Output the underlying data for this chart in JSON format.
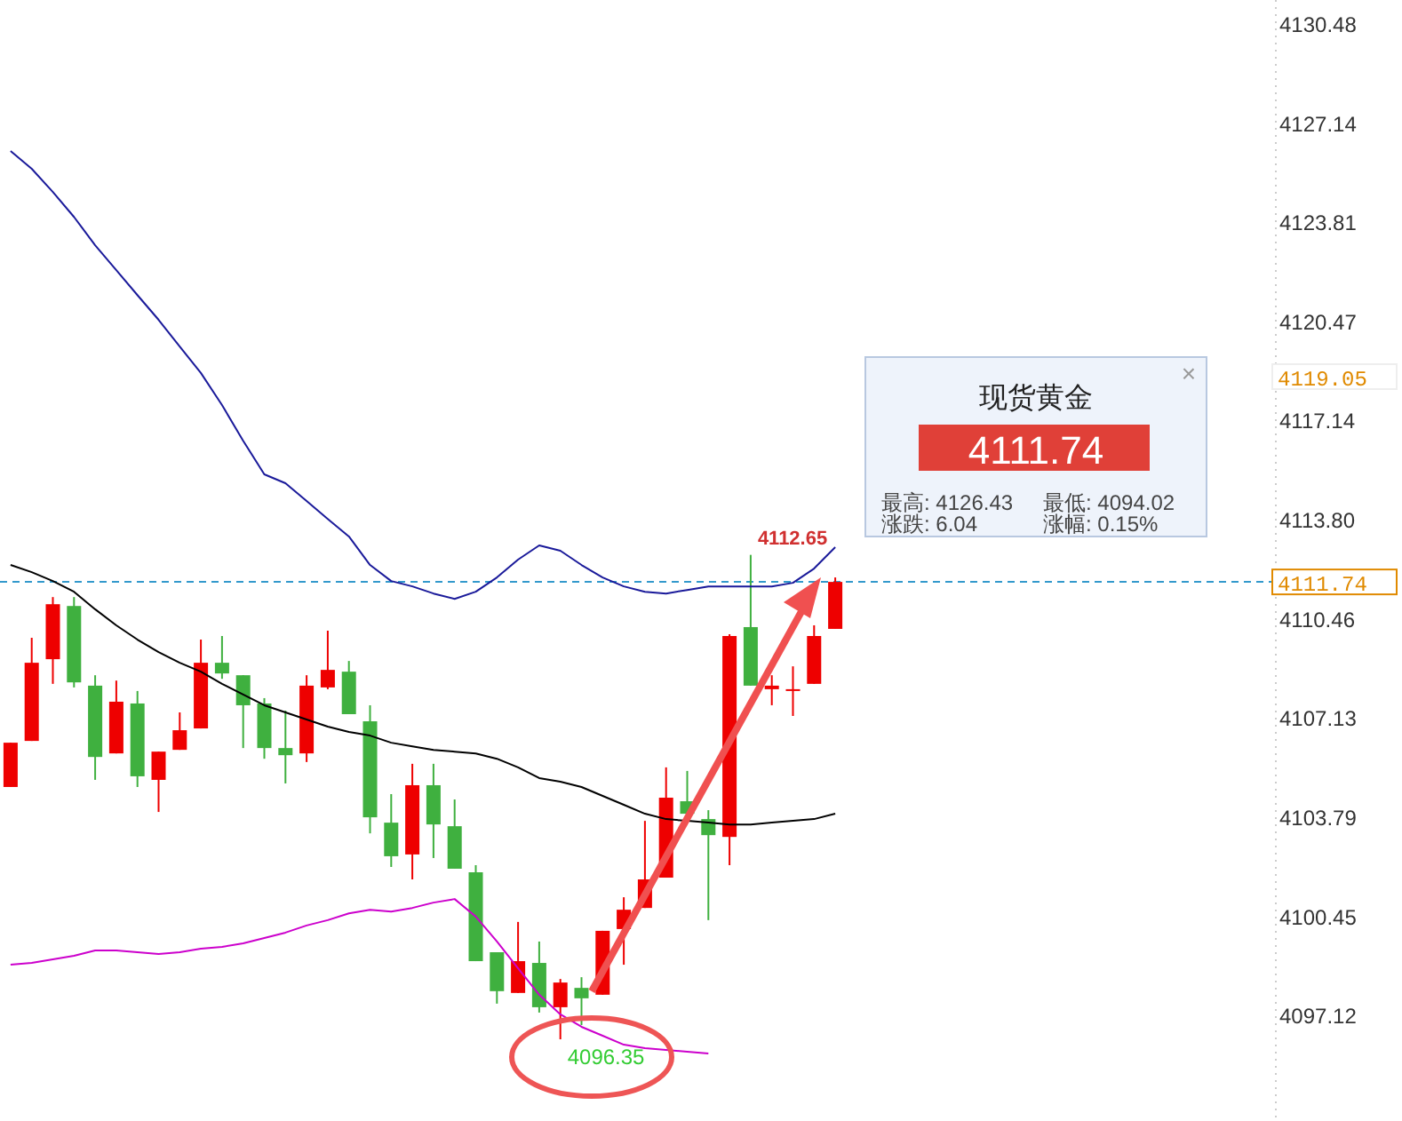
{
  "chart_data": {
    "type": "candlestick",
    "categories": [
      null,
      null,
      null,
      null,
      null,
      null,
      null,
      null,
      null,
      null,
      null,
      null,
      null,
      null,
      null,
      null,
      null,
      null,
      null,
      null,
      null,
      null,
      null,
      null,
      null,
      null,
      null,
      null,
      null,
      null,
      null,
      null,
      null,
      null,
      null,
      null,
      null,
      null,
      null,
      null,
      null,
      null,
      null,
      null,
      null,
      null,
      null,
      null,
      null,
      null,
      null,
      null,
      null,
      null,
      null,
      null,
      null,
      null,
      null,
      null
    ],
    "ohlc": [
      [
        4104.84,
        4106.33,
        4104.84,
        4106.33
      ],
      [
        4106.39,
        4109.86,
        4106.39,
        4109.02
      ],
      [
        4109.14,
        4111.23,
        4108.31,
        4110.99
      ],
      [
        4110.93,
        4111.23,
        4108.19,
        4108.36
      ],
      [
        4108.25,
        4108.6,
        4105.08,
        4105.85
      ],
      [
        4105.97,
        4108.42,
        4105.97,
        4107.71
      ],
      [
        4107.65,
        4108.07,
        4104.84,
        4105.2
      ],
      [
        4105.08,
        4106.03,
        4104.0,
        4106.03
      ],
      [
        4106.09,
        4107.35,
        4106.09,
        4106.75
      ],
      [
        4106.81,
        4109.8,
        4106.81,
        4109.02
      ],
      [
        4109.02,
        4109.92,
        4108.48,
        4108.66
      ],
      [
        4108.6,
        4108.6,
        4106.15,
        4107.59
      ],
      [
        4107.65,
        4107.83,
        4105.79,
        4106.15
      ],
      [
        4106.15,
        4107.41,
        4104.96,
        4105.91
      ],
      [
        4105.97,
        4108.6,
        4105.68,
        4108.25
      ],
      [
        4108.19,
        4110.1,
        4108.13,
        4108.78
      ],
      [
        4108.72,
        4109.08,
        4107.29,
        4107.29
      ],
      [
        4107.05,
        4107.59,
        4103.28,
        4103.82
      ],
      [
        4103.64,
        4104.6,
        4102.15,
        4102.51
      ],
      [
        4102.57,
        4105.62,
        4101.73,
        4104.9
      ],
      [
        4104.9,
        4105.62,
        4102.45,
        4103.58
      ],
      [
        4103.52,
        4104.42,
        4102.09,
        4102.09
      ],
      [
        4101.97,
        4102.21,
        4098.98,
        4098.98
      ],
      [
        4099.28,
        4099.28,
        4097.55,
        4097.97
      ],
      [
        4097.91,
        4100.3,
        4097.91,
        4098.98
      ],
      [
        4098.92,
        4099.64,
        4097.25,
        4097.43
      ],
      [
        4097.43,
        4098.38,
        4096.35,
        4098.26
      ],
      [
        4098.08,
        4098.44,
        4096.83,
        4097.73
      ],
      [
        4097.85,
        4100.0,
        4097.85,
        4100.0
      ],
      [
        4100.06,
        4101.13,
        4098.86,
        4100.71
      ],
      [
        4100.77,
        4103.7,
        4100.77,
        4101.73
      ],
      [
        4101.79,
        4105.5,
        4101.79,
        4104.48
      ],
      [
        4104.36,
        4105.38,
        4103.94,
        4103.94
      ],
      [
        4103.76,
        4104.06,
        4100.36,
        4103.22
      ],
      [
        4103.16,
        4109.98,
        4102.21,
        4109.92
      ],
      [
        4110.22,
        4112.65,
        4108.25,
        4108.25
      ],
      [
        4108.13,
        4108.6,
        4107.59,
        4108.25
      ],
      [
        4108.07,
        4108.9,
        4107.23,
        4108.13
      ],
      [
        4108.31,
        4110.28,
        4108.31,
        4109.92
      ],
      [
        4110.16,
        4111.89,
        4110.16,
        4111.74
      ],
      null,
      null,
      null,
      null,
      null,
      null,
      null,
      null,
      null,
      null,
      null,
      null,
      null,
      null,
      null,
      null,
      null,
      null,
      null,
      null
    ],
    "colors": [
      "#ee0000",
      "#ee0000",
      "#ee0000",
      "#3fb03f",
      "#3fb03f",
      "#ee0000",
      "#3fb03f",
      "#ee0000",
      "#ee0000",
      "#ee0000",
      "#3fb03f",
      "#3fb03f",
      "#3fb03f",
      "#3fb03f",
      "#ee0000",
      "#ee0000",
      "#3fb03f",
      "#3fb03f",
      "#3fb03f",
      "#ee0000",
      "#3fb03f",
      "#3fb03f",
      "#3fb03f",
      "#3fb03f",
      "#ee0000",
      "#3fb03f",
      "#ee0000",
      "#3fb03f",
      "#ee0000",
      "#ee0000",
      "#ee0000",
      "#ee0000",
      "#3fb03f",
      "#3fb03f",
      "#ee0000",
      "#3fb03f",
      "#ee0000",
      "#ee0000",
      "#ee0000",
      "#ee0000",
      null,
      null,
      null,
      null,
      null,
      null,
      null,
      null,
      null,
      null,
      null,
      null,
      null,
      null,
      null,
      null,
      null,
      null,
      null,
      null
    ],
    "series": [
      {
        "type": "line",
        "color": "#1a1a9a",
        "values": [
          4126.24,
          4125.64,
          4124.86,
          4124.02,
          4123.07,
          4122.23,
          4121.39,
          4120.56,
          4119.66,
          4118.77,
          4117.69,
          4116.49,
          4115.36,
          4115.06,
          4114.46,
          4113.86,
          4113.27,
          4112.31,
          4111.77,
          4111.59,
          4111.35,
          4111.17,
          4111.41,
          4111.89,
          4112.49,
          4112.97,
          4112.79,
          4112.31,
          4111.89,
          4111.59,
          4111.41,
          4111.35,
          4111.47,
          4111.59,
          4111.59,
          4111.59,
          4111.59,
          4111.71,
          4112.19,
          4112.91,
          null,
          null,
          null,
          null,
          null,
          null,
          null,
          null,
          null,
          null,
          null,
          null,
          null,
          null,
          null,
          null,
          null,
          null,
          null,
          null
        ]
      },
      {
        "type": "line",
        "color": "#000000",
        "values": [
          4112.31,
          4112.07,
          4111.77,
          4111.41,
          4110.82,
          4110.28,
          4109.8,
          4109.38,
          4109.02,
          4108.72,
          4108.31,
          4107.95,
          4107.59,
          4107.35,
          4107.11,
          4106.87,
          4106.69,
          4106.57,
          4106.33,
          4106.21,
          4106.09,
          4106.03,
          4105.97,
          4105.79,
          4105.5,
          4105.14,
          4105.02,
          4104.84,
          4104.54,
          4104.24,
          4103.94,
          4103.76,
          4103.7,
          4103.64,
          4103.58,
          4103.58,
          4103.64,
          4103.7,
          4103.76,
          4103.94,
          null,
          null,
          null,
          null,
          null,
          null,
          null,
          null,
          null,
          null,
          null,
          null,
          null,
          null,
          null,
          null,
          null,
          null,
          null,
          null
        ]
      },
      {
        "type": "line",
        "color": "#cc00cc",
        "values": [
          4098.86,
          4098.92,
          4099.04,
          4099.16,
          4099.34,
          4099.34,
          4099.28,
          4099.22,
          4099.28,
          4099.4,
          4099.46,
          4099.58,
          4099.76,
          4099.94,
          4100.18,
          4100.36,
          4100.59,
          4100.71,
          4100.65,
          4100.77,
          4100.95,
          4101.07,
          4100.48,
          4099.64,
          4098.74,
          4097.85,
          4097.19,
          4096.77,
          4096.47,
          4096.17,
          4096.05,
          4095.99,
          4095.93,
          4095.87,
          null,
          null,
          null,
          null,
          null,
          null,
          null,
          null,
          null,
          null,
          null,
          null,
          null,
          null,
          null,
          null,
          null,
          null,
          null,
          null,
          null,
          null,
          null,
          null,
          null,
          null
        ]
      }
    ],
    "ylim": [
      4093.96,
      4131.32
    ],
    "yticks": [
      4130.48,
      4127.14,
      4123.81,
      4120.47,
      4117.14,
      {
        "value": 4113.8,
        "label": "4113.80"
      },
      4110.46,
      4107.13,
      4103.79,
      4100.45,
      4097.12
    ],
    "tick_labels": "y",
    "ref_lines": [
      {
        "axis": "y",
        "value": 4111.74,
        "label": "4111.74",
        "color": "#3399cc",
        "line_style": "dashed"
      }
    ],
    "annotations": [
      "4112.65",
      {
        "text": "4096.35",
        "y": 4096.35
      },
      "4119.05",
      "现货黄金",
      "4111.74",
      "最高: 4126.43",
      "最低: 4094.02",
      "涨跌: 6.04",
      "涨幅: 0.15%",
      "×"
    ]
  }
}
